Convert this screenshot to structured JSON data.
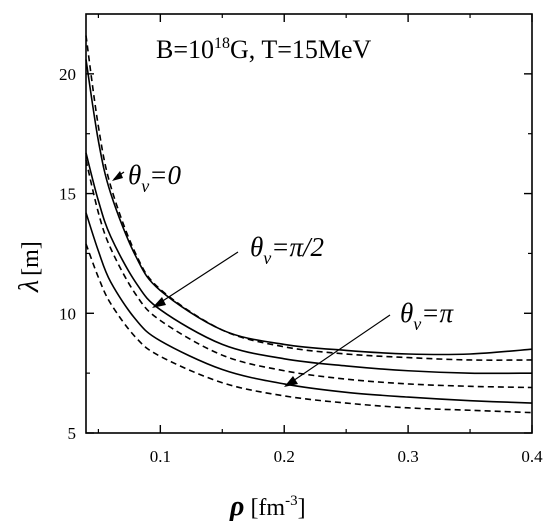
{
  "chart_data": {
    "type": "line",
    "title": "B=10^18G, T=15MeV",
    "title_parts": {
      "prefix": "B=10",
      "superscript": "18",
      "suffix": "G, T=15MeV"
    },
    "xlabel": {
      "symbol": "ρ",
      "unit_prefix": "[fm",
      "unit_superscript": "-3",
      "unit_suffix": "]"
    },
    "ylabel": {
      "symbol": "λ",
      "unit": "[m]"
    },
    "xlim": [
      0.04,
      0.4
    ],
    "ylim": [
      5,
      22.5
    ],
    "x_ticks": [
      0.1,
      0.2,
      0.3,
      0.4
    ],
    "x_tick_labels": [
      "0.1",
      "0.2",
      "0.3",
      "0.4"
    ],
    "y_ticks": [
      5,
      10,
      15,
      20
    ],
    "y_tick_labels": [
      "5",
      "10",
      "15",
      "20"
    ],
    "grid": false,
    "annotations": [
      {
        "id": "theta0",
        "symbol": "θ",
        "subscript": "ν",
        "rest": "=0"
      },
      {
        "id": "thetapi2",
        "symbol": "θ",
        "subscript": "ν",
        "rest": "=π/2"
      },
      {
        "id": "thetapi",
        "symbol": "θ",
        "subscript": "ν",
        "rest": "=π"
      }
    ],
    "series": [
      {
        "group": "θν=0",
        "line": "solid",
        "x": [
          0.04,
          0.05,
          0.06,
          0.08,
          0.1,
          0.15,
          0.2,
          0.25,
          0.3,
          0.35,
          0.4
        ],
        "y": [
          20.6,
          17.2,
          15.0,
          12.4,
          10.95,
          9.3,
          8.7,
          8.45,
          8.3,
          8.3,
          8.5
        ]
      },
      {
        "group": "θν=0",
        "line": "dashed",
        "x": [
          0.04,
          0.05,
          0.06,
          0.08,
          0.1,
          0.15,
          0.2,
          0.25,
          0.3,
          0.35,
          0.4
        ],
        "y": [
          21.6,
          17.8,
          15.3,
          12.5,
          11.0,
          9.3,
          8.6,
          8.3,
          8.15,
          8.05,
          8.05
        ]
      },
      {
        "group": "θν=π/2",
        "line": "solid",
        "x": [
          0.04,
          0.05,
          0.06,
          0.08,
          0.1,
          0.15,
          0.2,
          0.25,
          0.3,
          0.35,
          0.4
        ],
        "y": [
          16.7,
          14.7,
          13.2,
          11.3,
          10.15,
          8.7,
          8.1,
          7.8,
          7.6,
          7.5,
          7.5
        ]
      },
      {
        "group": "θν=π/2",
        "line": "dashed",
        "x": [
          0.04,
          0.05,
          0.06,
          0.08,
          0.1,
          0.15,
          0.2,
          0.25,
          0.3,
          0.35,
          0.4
        ],
        "y": [
          16.4,
          14.2,
          12.7,
          10.8,
          9.7,
          8.25,
          7.6,
          7.25,
          7.05,
          6.95,
          6.9
        ]
      },
      {
        "group": "θν=π",
        "line": "solid",
        "x": [
          0.04,
          0.05,
          0.06,
          0.08,
          0.1,
          0.15,
          0.2,
          0.25,
          0.3,
          0.35,
          0.4
        ],
        "y": [
          14.2,
          12.6,
          11.3,
          9.75,
          8.85,
          7.65,
          7.05,
          6.7,
          6.5,
          6.35,
          6.25
        ]
      },
      {
        "group": "θν=π",
        "line": "dashed",
        "x": [
          0.04,
          0.05,
          0.06,
          0.08,
          0.1,
          0.15,
          0.2,
          0.25,
          0.3,
          0.35,
          0.4
        ],
        "y": [
          12.9,
          11.5,
          10.4,
          9.0,
          8.2,
          7.1,
          6.55,
          6.25,
          6.05,
          5.95,
          5.85
        ]
      }
    ]
  }
}
